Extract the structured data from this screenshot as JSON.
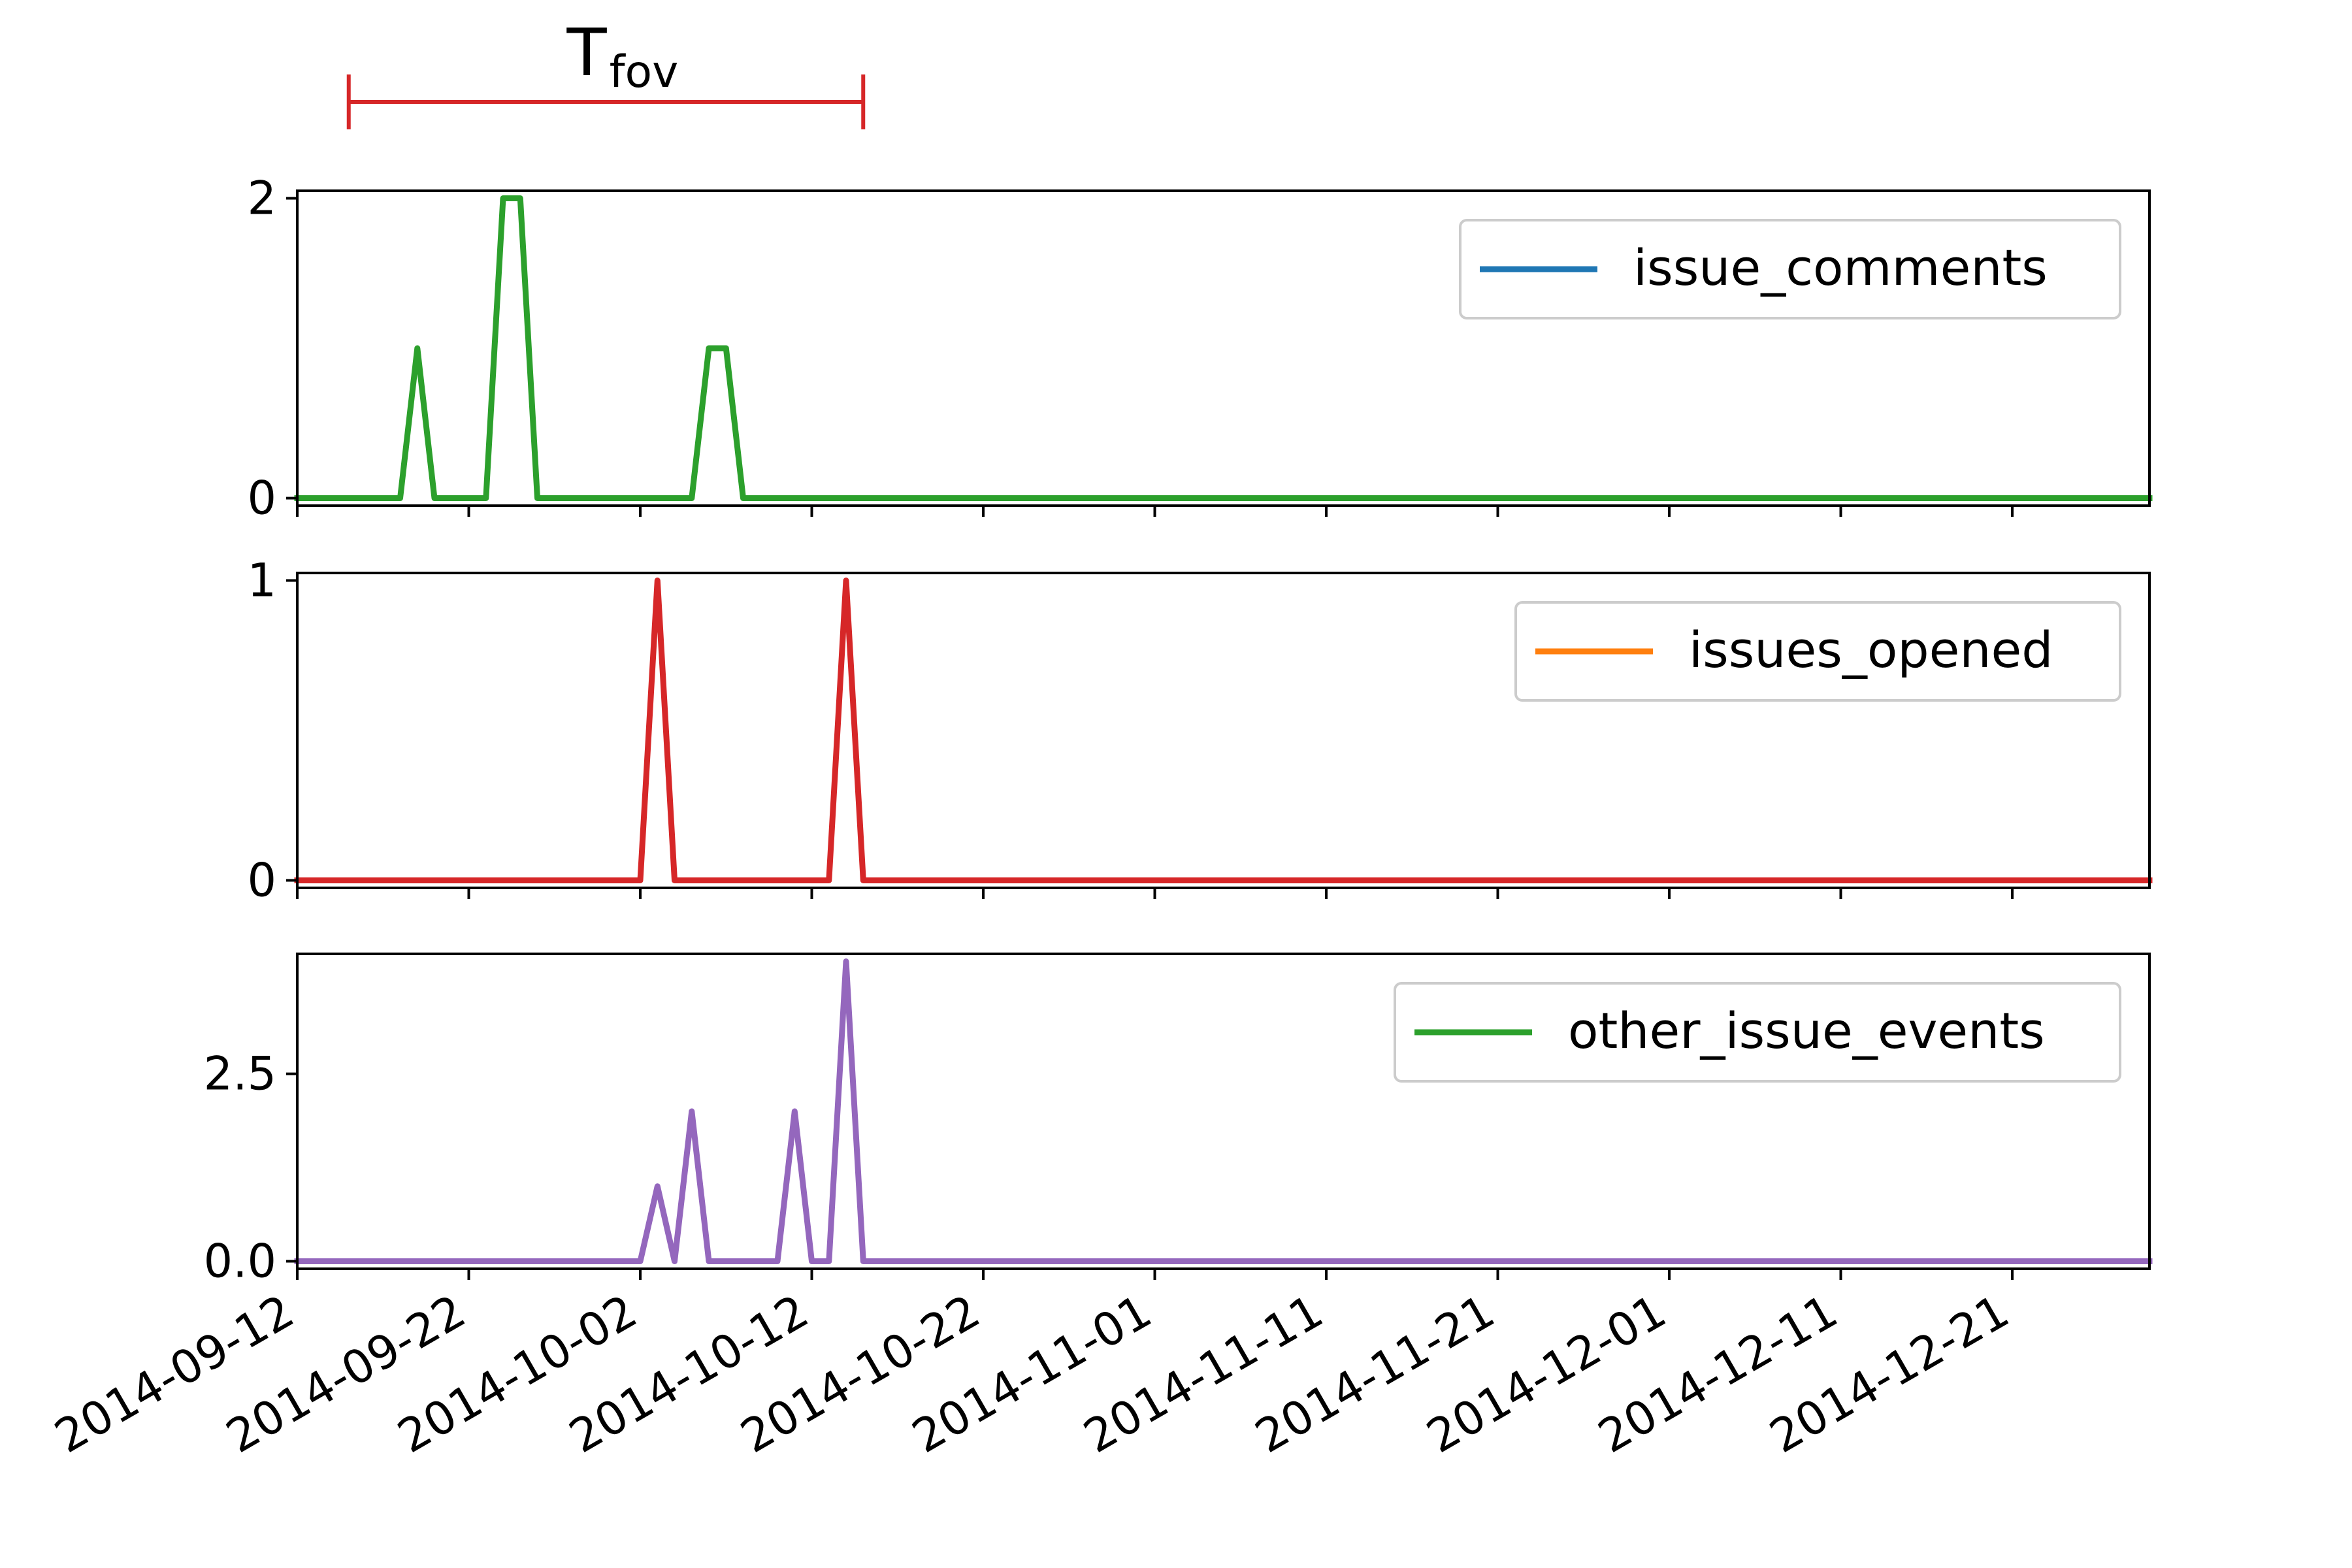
{
  "annotation": {
    "label_main": "T",
    "label_sub": "fov",
    "start": "2014-09-15",
    "end": "2014-10-15",
    "color": "#d62728"
  },
  "x_axis": {
    "min": "2014-09-12",
    "max": "2014-12-29",
    "tick_labels": [
      "2014-09-12",
      "2014-09-22",
      "2014-10-02",
      "2014-10-12",
      "2014-10-22",
      "2014-11-01",
      "2014-11-11",
      "2014-11-21",
      "2014-12-01",
      "2014-12-11",
      "2014-12-21"
    ]
  },
  "chart_data": [
    {
      "type": "line",
      "title": "",
      "xlabel": "",
      "ylabel": "",
      "ylim": [
        -0.05,
        2.05
      ],
      "yticks": [
        0,
        2
      ],
      "ytick_labels": [
        "0",
        "2"
      ],
      "legend": {
        "placement": "upper-right",
        "label": "issue_comments",
        "color": "#1f77b4"
      },
      "series": [
        {
          "color": "#2ca02c",
          "x": [
            "2014-09-12",
            "2014-09-18",
            "2014-09-19",
            "2014-09-20",
            "2014-09-23",
            "2014-09-24",
            "2014-09-25",
            "2014-09-26",
            "2014-10-05",
            "2014-10-06",
            "2014-10-07",
            "2014-10-08",
            "2014-12-29"
          ],
          "y": [
            0,
            0,
            1,
            0,
            0,
            2,
            2,
            0,
            0,
            1,
            1,
            0,
            0
          ]
        }
      ]
    },
    {
      "type": "line",
      "title": "",
      "xlabel": "",
      "ylabel": "",
      "ylim": [
        -0.025,
        1.025
      ],
      "yticks": [
        0,
        1
      ],
      "ytick_labels": [
        "0",
        "1"
      ],
      "legend": {
        "placement": "upper-right",
        "label": "issues_opened",
        "color": "#ff7f0e"
      },
      "series": [
        {
          "color": "#d62728",
          "x": [
            "2014-09-12",
            "2014-10-02",
            "2014-10-03",
            "2014-10-04",
            "2014-10-13",
            "2014-10-14",
            "2014-10-15",
            "2014-12-29"
          ],
          "y": [
            0,
            0,
            1,
            0,
            0,
            1,
            0,
            0
          ]
        }
      ]
    },
    {
      "type": "line",
      "title": "",
      "xlabel": "",
      "ylabel": "",
      "ylim": [
        -0.1,
        4.1
      ],
      "yticks": [
        0,
        2.5
      ],
      "ytick_labels": [
        "0.0",
        "2.5"
      ],
      "legend": {
        "placement": "upper-right",
        "label": "other_issue_events",
        "color": "#2ca02c"
      },
      "series": [
        {
          "color": "#9467bd",
          "x": [
            "2014-09-12",
            "2014-10-02",
            "2014-10-03",
            "2014-10-04",
            "2014-10-05",
            "2014-10-06",
            "2014-10-10",
            "2014-10-11",
            "2014-10-12",
            "2014-10-13",
            "2014-10-14",
            "2014-10-15",
            "2014-12-29"
          ],
          "y": [
            0,
            0,
            1,
            0,
            2,
            0,
            0,
            2,
            0,
            0,
            4,
            0,
            0
          ]
        }
      ]
    }
  ]
}
